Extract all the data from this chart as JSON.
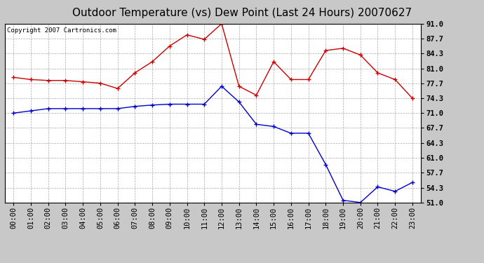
{
  "title": "Outdoor Temperature (vs) Dew Point (Last 24 Hours) 20070627",
  "copyright_text": "Copyright 2007 Cartronics.com",
  "hours": [
    "00:00",
    "01:00",
    "02:00",
    "03:00",
    "04:00",
    "05:00",
    "06:00",
    "07:00",
    "08:00",
    "09:00",
    "10:00",
    "11:00",
    "12:00",
    "13:00",
    "14:00",
    "15:00",
    "16:00",
    "17:00",
    "18:00",
    "19:00",
    "20:00",
    "21:00",
    "22:00",
    "23:00"
  ],
  "temp": [
    79.0,
    78.5,
    78.3,
    78.3,
    78.0,
    77.7,
    76.5,
    80.0,
    82.5,
    86.0,
    88.5,
    87.5,
    91.0,
    77.0,
    75.0,
    82.5,
    78.5,
    78.5,
    85.0,
    85.5,
    84.0,
    80.0,
    78.5,
    74.3
  ],
  "dew": [
    71.0,
    71.5,
    72.0,
    72.0,
    72.0,
    72.0,
    72.0,
    72.5,
    72.8,
    73.0,
    73.0,
    73.0,
    77.0,
    73.5,
    68.5,
    68.0,
    66.5,
    66.5,
    59.5,
    51.5,
    51.0,
    54.5,
    53.5,
    55.5
  ],
  "temp_color": "#cc0000",
  "dew_color": "#0000cc",
  "fig_bg_color": "#c8c8c8",
  "plot_bg_color": "#ffffff",
  "grid_color": "#aaaaaa",
  "ylim_min": 51.0,
  "ylim_max": 91.0,
  "yticks": [
    51.0,
    54.3,
    57.7,
    61.0,
    64.3,
    67.7,
    71.0,
    74.3,
    77.7,
    81.0,
    84.3,
    87.7,
    91.0
  ],
  "title_fontsize": 11,
  "copyright_fontsize": 6.5,
  "tick_fontsize": 7.5
}
